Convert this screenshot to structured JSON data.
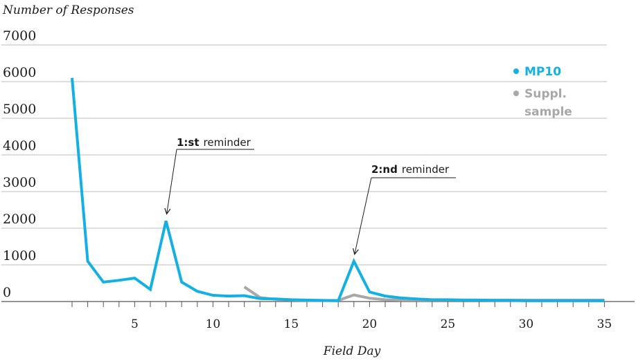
{
  "chart_data": {
    "type": "line",
    "title": "",
    "ylabel": "Number of Responses",
    "xlabel": "Field Day",
    "ylim": [
      0,
      7000
    ],
    "xlim": [
      0,
      35
    ],
    "yticks": [
      "0",
      "1000",
      "2000",
      "3000",
      "4000",
      "5000",
      "6000",
      "7000"
    ],
    "xticks": [
      "5",
      "10",
      "15",
      "20",
      "25",
      "30",
      "35"
    ],
    "grid": "horizontal",
    "legend_position": "right",
    "series": [
      {
        "name": "MP10",
        "color": "#13b0e3",
        "x": [
          1,
          2,
          3,
          4,
          5,
          6,
          7,
          8,
          9,
          10,
          11,
          12,
          13,
          14,
          15,
          16,
          17,
          18,
          19,
          20,
          21,
          22,
          23,
          24,
          25,
          26,
          27,
          28,
          29,
          30,
          31,
          32,
          33,
          34,
          35
        ],
        "values": [
          6100,
          1100,
          530,
          580,
          640,
          330,
          2200,
          530,
          280,
          170,
          150,
          160,
          80,
          70,
          50,
          40,
          30,
          20,
          1100,
          260,
          150,
          100,
          70,
          50,
          50,
          40,
          40,
          30,
          30,
          20,
          20,
          20,
          20,
          20,
          20
        ]
      },
      {
        "name": "Suppl. sample",
        "color": "#a8a8a8",
        "x": [
          12,
          13,
          14,
          15,
          16,
          17,
          18,
          19,
          20,
          21,
          22,
          23,
          24,
          25,
          26,
          27,
          28,
          29,
          30,
          31,
          32,
          33,
          34,
          35
        ],
        "values": [
          400,
          110,
          60,
          40,
          30,
          30,
          30,
          180,
          90,
          50,
          40,
          40,
          40,
          40,
          40,
          40,
          40,
          40,
          40,
          40,
          40,
          40,
          40,
          40
        ]
      }
    ],
    "annotations": [
      {
        "bold": "1:st",
        "text": "reminder",
        "x": 7,
        "y": 2200
      },
      {
        "bold": "2:nd",
        "text": "reminder",
        "x": 19,
        "y": 1100
      }
    ]
  }
}
